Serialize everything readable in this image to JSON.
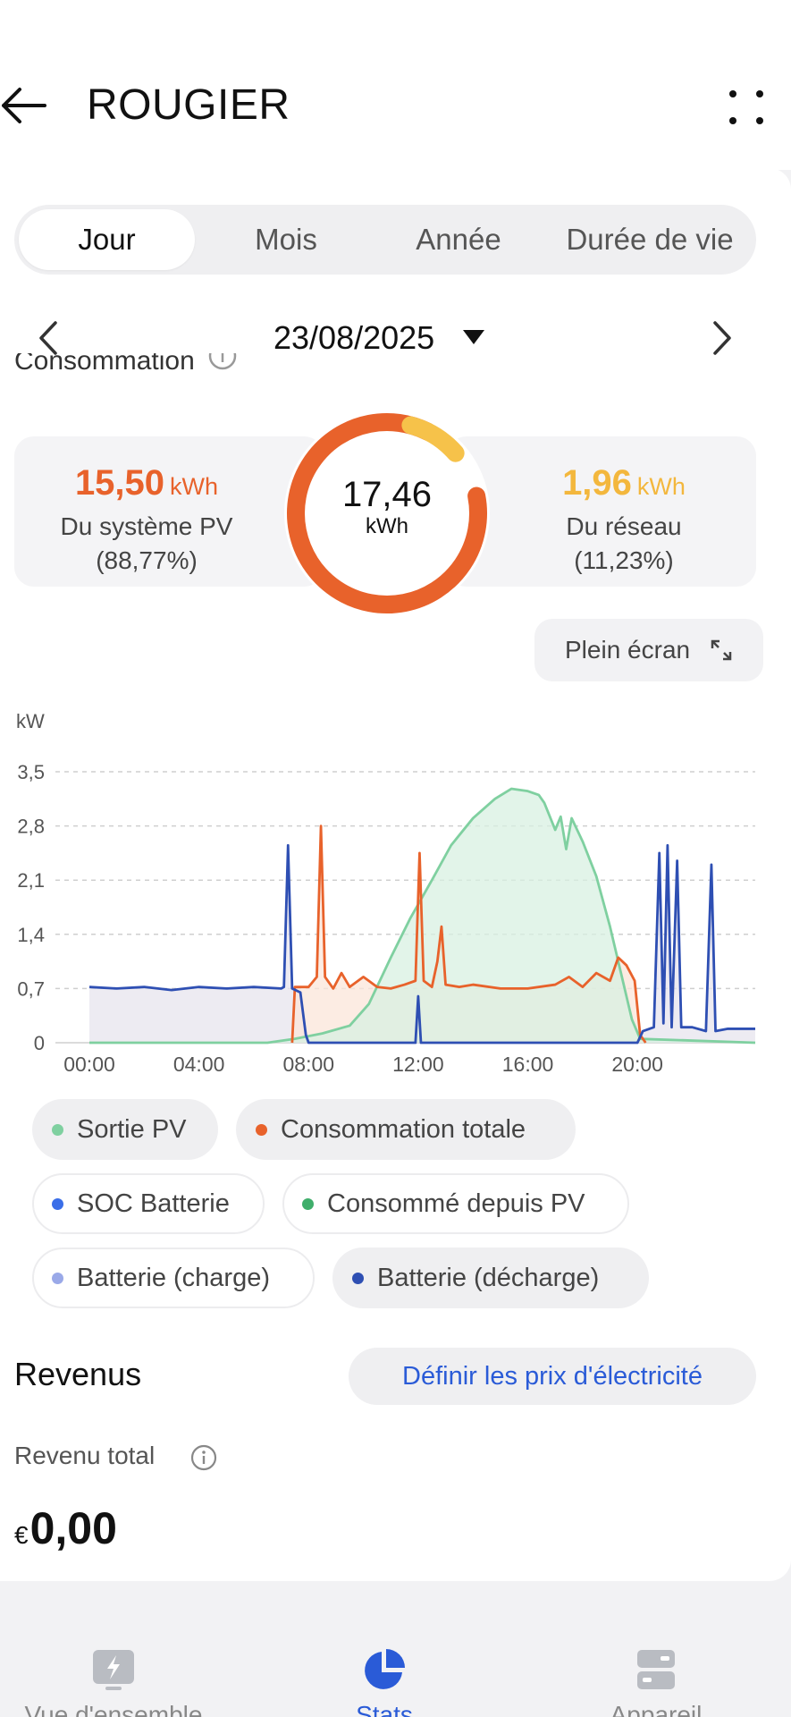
{
  "header": {
    "title": "ROUGIER"
  },
  "segments": [
    {
      "label": "Jour",
      "active": true
    },
    {
      "label": "Mois",
      "active": false
    },
    {
      "label": "Année",
      "active": false
    },
    {
      "label": "Durée de vie",
      "active": false
    }
  ],
  "date": {
    "label": "23/08/2025"
  },
  "consumption": {
    "section_title": "Consommation",
    "total_value": "17,46",
    "total_unit": "kWh",
    "pv": {
      "value": "15,50",
      "unit": "kWh",
      "label": "Du système PV",
      "percent": "(88,77%)",
      "color": "#e8622b"
    },
    "grid": {
      "value": "1,96",
      "unit": "kWh",
      "label": "Du réseau",
      "percent": "(11,23%)",
      "color": "#f3b73d"
    }
  },
  "fullscreen_label": "Plein écran",
  "chart_data": {
    "type": "line",
    "ylabel": "kW",
    "ylim": [
      0,
      3.5
    ],
    "y_ticks": [
      "3,5",
      "2,8",
      "2,1",
      "1,4",
      "0,7",
      "0"
    ],
    "x_ticks": [
      "00:00",
      "04:00",
      "08:00",
      "12:00",
      "16:00",
      "20:00"
    ],
    "xlim_hours": [
      0,
      24.3
    ],
    "series": [
      {
        "name": "Sortie PV",
        "color": "#7fd0a0",
        "fill": "#d8f0e2",
        "points": [
          [
            0,
            0
          ],
          [
            6.5,
            0
          ],
          [
            7.5,
            0.05
          ],
          [
            8.5,
            0.12
          ],
          [
            9.5,
            0.22
          ],
          [
            10.2,
            0.5
          ],
          [
            11,
            1.1
          ],
          [
            11.7,
            1.6
          ],
          [
            12.5,
            2.1
          ],
          [
            13.2,
            2.55
          ],
          [
            14,
            2.9
          ],
          [
            14.8,
            3.15
          ],
          [
            15.4,
            3.28
          ],
          [
            16,
            3.25
          ],
          [
            16.4,
            3.2
          ],
          [
            16.6,
            3.1
          ],
          [
            17,
            2.75
          ],
          [
            17.2,
            2.92
          ],
          [
            17.4,
            2.5
          ],
          [
            17.6,
            2.9
          ],
          [
            18,
            2.6
          ],
          [
            18.5,
            2.15
          ],
          [
            19,
            1.5
          ],
          [
            19.4,
            0.9
          ],
          [
            19.8,
            0.3
          ],
          [
            20.1,
            0.05
          ],
          [
            24.3,
            0
          ]
        ]
      },
      {
        "name": "Consommation totale",
        "color": "#e8622b",
        "fill": "#fbe6da",
        "points": [
          [
            7.4,
            0
          ],
          [
            7.5,
            0.72
          ],
          [
            8,
            0.72
          ],
          [
            8.3,
            0.85
          ],
          [
            8.45,
            2.8
          ],
          [
            8.6,
            0.85
          ],
          [
            8.9,
            0.7
          ],
          [
            9.2,
            0.9
          ],
          [
            9.5,
            0.72
          ],
          [
            10,
            0.85
          ],
          [
            10.5,
            0.72
          ],
          [
            11,
            0.7
          ],
          [
            11.5,
            0.75
          ],
          [
            11.9,
            0.8
          ],
          [
            12.05,
            2.45
          ],
          [
            12.2,
            0.8
          ],
          [
            12.5,
            0.72
          ],
          [
            12.7,
            1.05
          ],
          [
            12.85,
            1.5
          ],
          [
            13,
            0.75
          ],
          [
            13.5,
            0.72
          ],
          [
            14,
            0.75
          ],
          [
            15,
            0.7
          ],
          [
            16,
            0.7
          ],
          [
            17,
            0.75
          ],
          [
            17.5,
            0.85
          ],
          [
            18,
            0.72
          ],
          [
            18.5,
            0.9
          ],
          [
            19,
            0.8
          ],
          [
            19.3,
            1.1
          ],
          [
            19.6,
            1.0
          ],
          [
            19.9,
            0.8
          ],
          [
            20.1,
            0.1
          ],
          [
            20.3,
            0
          ]
        ]
      },
      {
        "name": "Batterie (décharge)",
        "color": "#2e4fb3",
        "fill": "#e7e4ee",
        "points": [
          [
            0,
            0.72
          ],
          [
            1,
            0.7
          ],
          [
            2,
            0.72
          ],
          [
            3,
            0.68
          ],
          [
            4,
            0.72
          ],
          [
            5,
            0.7
          ],
          [
            6,
            0.72
          ],
          [
            7,
            0.7
          ],
          [
            7.1,
            0.72
          ],
          [
            7.25,
            2.55
          ],
          [
            7.4,
            0.7
          ],
          [
            7.7,
            0.65
          ],
          [
            7.9,
            0.1
          ],
          [
            8,
            0.0
          ],
          [
            11.9,
            0
          ],
          [
            12,
            0.6
          ],
          [
            12.1,
            0
          ],
          [
            20,
            0
          ],
          [
            20.2,
            0.15
          ],
          [
            20.6,
            0.2
          ],
          [
            20.8,
            2.45
          ],
          [
            20.95,
            0.25
          ],
          [
            21.1,
            2.55
          ],
          [
            21.25,
            0.2
          ],
          [
            21.45,
            2.35
          ],
          [
            21.6,
            0.2
          ],
          [
            22,
            0.2
          ],
          [
            22.5,
            0.15
          ],
          [
            22.7,
            2.3
          ],
          [
            22.85,
            0.15
          ],
          [
            23.3,
            0.18
          ],
          [
            24.3,
            0.18
          ]
        ]
      }
    ]
  },
  "legend": [
    {
      "label": "Sortie PV",
      "color": "#7fd0a0",
      "style": "filled"
    },
    {
      "label": "Consommation totale",
      "color": "#e8622b",
      "style": "filled"
    },
    {
      "label": "SOC Batterie",
      "color": "#3a6ee8",
      "style": "outline"
    },
    {
      "label": "Consommé depuis PV",
      "color": "#3fae6b",
      "style": "outline"
    },
    {
      "label": "Batterie (charge)",
      "color": "#9aa9e8",
      "style": "outline"
    },
    {
      "label": "Batterie (décharge)",
      "color": "#2e4fb3",
      "style": "filled"
    }
  ],
  "revenue": {
    "title": "Revenus",
    "set_price_label": "Définir les prix d'électricité",
    "total_label": "Revenu total",
    "currency": "€",
    "amount": "0,00"
  },
  "tabs": [
    {
      "label": "Vue d'ensemble",
      "icon": "bolt-icon",
      "active": false
    },
    {
      "label": "Stats",
      "icon": "pie-chart-icon",
      "active": true
    },
    {
      "label": "Appareil",
      "icon": "device-icon",
      "active": false
    }
  ],
  "colors": {
    "accent": "#2a5bd7",
    "pv": "#e8622b",
    "grid": "#f3b73d"
  }
}
